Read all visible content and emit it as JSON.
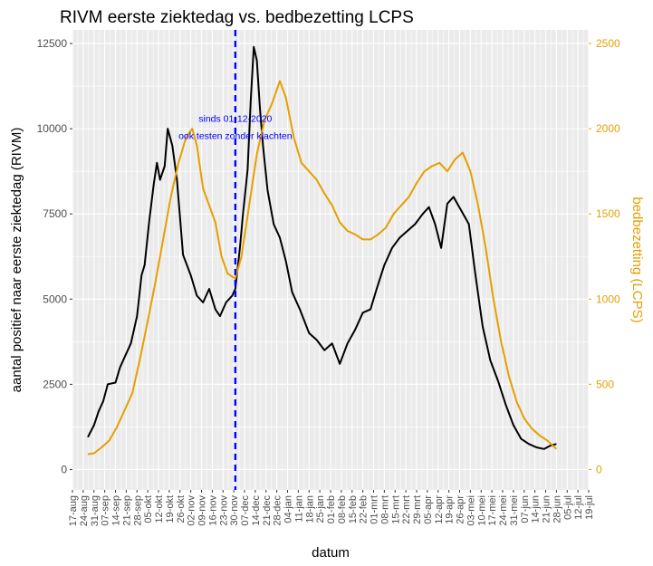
{
  "chart_data": {
    "type": "line",
    "title": "RIVM eerste ziektedag vs. bedbezetting LCPS",
    "xlabel": "datum",
    "ylabel": "aantal positief naar eerste ziektedag (RIVM)",
    "ylabel_right": "bedbezetting (LCPS)",
    "ylim": [
      -600,
      12900
    ],
    "ylim_right": [
      -120,
      2580
    ],
    "yticks": [
      0,
      2500,
      5000,
      7500,
      10000,
      12500
    ],
    "yticks_right": [
      0,
      500,
      1000,
      1500,
      2000,
      2500
    ],
    "x_start": "2020-08-17",
    "x_end": "2021-07-19",
    "xtick_labels": [
      "17-aug",
      "24-aug",
      "31-aug",
      "07-sep",
      "14-sep",
      "21-sep",
      "28-sep",
      "05-okt",
      "12-okt",
      "19-okt",
      "26-okt",
      "02-nov",
      "09-nov",
      "16-nov",
      "23-nov",
      "30-nov",
      "07-dec",
      "14-dec",
      "21-dec",
      "28-dec",
      "04-jan",
      "11-jan",
      "18-jan",
      "25-jan",
      "01-feb",
      "08-feb",
      "15-feb",
      "22-feb",
      "01-mrt",
      "08-mrt",
      "15-mrt",
      "22-mrt",
      "29-mrt",
      "05-apr",
      "12-apr",
      "19-apr",
      "26-apr",
      "03-mei",
      "10-mei",
      "17-mei",
      "24-mei",
      "31-mei",
      "07-jun",
      "14-jun",
      "21-jun",
      "28-jun",
      "05-jul",
      "12-jul",
      "19-jul"
    ],
    "vline": {
      "date": "2020-12-01",
      "color": "#0000ff",
      "style": "dashed"
    },
    "annotation": {
      "line1": "sinds 01-12-2020",
      "line2": "ook testen zonder klachten"
    },
    "colors": {
      "rivm": "#000000",
      "lcps": "#e69f00",
      "panel": "#ebebeb",
      "grid": "#ffffff",
      "annotation": "#0000ff"
    },
    "series": [
      {
        "name": "RIVM eerste ziektedag",
        "color": "#000000",
        "axis": "left",
        "points": [
          [
            "2020-08-27",
            950
          ],
          [
            "2020-08-31",
            1300
          ],
          [
            "2020-09-03",
            1700
          ],
          [
            "2020-09-06",
            2000
          ],
          [
            "2020-09-09",
            2500
          ],
          [
            "2020-09-14",
            2550
          ],
          [
            "2020-09-17",
            3000
          ],
          [
            "2020-09-20",
            3300
          ],
          [
            "2020-09-24",
            3700
          ],
          [
            "2020-09-28",
            4500
          ],
          [
            "2020-10-01",
            5700
          ],
          [
            "2020-10-03",
            6000
          ],
          [
            "2020-10-06",
            7300
          ],
          [
            "2020-10-09",
            8400
          ],
          [
            "2020-10-11",
            9000
          ],
          [
            "2020-10-13",
            8500
          ],
          [
            "2020-10-16",
            8900
          ],
          [
            "2020-10-18",
            10000
          ],
          [
            "2020-10-21",
            9500
          ],
          [
            "2020-10-24",
            8500
          ],
          [
            "2020-10-28",
            6300
          ],
          [
            "2020-11-02",
            5700
          ],
          [
            "2020-11-06",
            5100
          ],
          [
            "2020-11-10",
            4900
          ],
          [
            "2020-11-14",
            5300
          ],
          [
            "2020-11-18",
            4700
          ],
          [
            "2020-11-21",
            4500
          ],
          [
            "2020-11-25",
            4900
          ],
          [
            "2020-11-29",
            5100
          ],
          [
            "2020-12-01",
            5300
          ],
          [
            "2020-12-04",
            6500
          ],
          [
            "2020-12-06",
            7500
          ],
          [
            "2020-12-09",
            8800
          ],
          [
            "2020-12-11",
            10800
          ],
          [
            "2020-12-13",
            12400
          ],
          [
            "2020-12-15",
            12000
          ],
          [
            "2020-12-17",
            10600
          ],
          [
            "2020-12-19",
            9500
          ],
          [
            "2020-12-22",
            8200
          ],
          [
            "2020-12-26",
            7200
          ],
          [
            "2020-12-30",
            6800
          ],
          [
            "2021-01-03",
            6100
          ],
          [
            "2021-01-07",
            5200
          ],
          [
            "2021-01-12",
            4700
          ],
          [
            "2021-01-18",
            4000
          ],
          [
            "2021-01-23",
            3800
          ],
          [
            "2021-01-28",
            3500
          ],
          [
            "2021-02-02",
            3700
          ],
          [
            "2021-02-07",
            3100
          ],
          [
            "2021-02-12",
            3700
          ],
          [
            "2021-02-17",
            4100
          ],
          [
            "2021-02-22",
            4600
          ],
          [
            "2021-02-27",
            4700
          ],
          [
            "2021-03-03",
            5300
          ],
          [
            "2021-03-08",
            6000
          ],
          [
            "2021-03-13",
            6500
          ],
          [
            "2021-03-18",
            6800
          ],
          [
            "2021-03-23",
            7000
          ],
          [
            "2021-03-28",
            7200
          ],
          [
            "2021-04-02",
            7500
          ],
          [
            "2021-04-06",
            7700
          ],
          [
            "2021-04-10",
            7200
          ],
          [
            "2021-04-14",
            6500
          ],
          [
            "2021-04-18",
            7800
          ],
          [
            "2021-04-22",
            8000
          ],
          [
            "2021-04-27",
            7600
          ],
          [
            "2021-05-02",
            7200
          ],
          [
            "2021-05-06",
            5800
          ],
          [
            "2021-05-11",
            4200
          ],
          [
            "2021-05-16",
            3200
          ],
          [
            "2021-05-21",
            2600
          ],
          [
            "2021-05-26",
            1900
          ],
          [
            "2021-05-31",
            1300
          ],
          [
            "2021-06-05",
            900
          ],
          [
            "2021-06-10",
            750
          ],
          [
            "2021-06-15",
            650
          ],
          [
            "2021-06-20",
            600
          ],
          [
            "2021-06-24",
            700
          ],
          [
            "2021-06-28",
            750
          ]
        ]
      },
      {
        "name": "LCPS bedbezetting",
        "color": "#e69f00",
        "axis": "right",
        "points": [
          [
            "2020-08-27",
            90
          ],
          [
            "2020-08-31",
            95
          ],
          [
            "2020-09-05",
            130
          ],
          [
            "2020-09-10",
            170
          ],
          [
            "2020-09-15",
            250
          ],
          [
            "2020-09-20",
            350
          ],
          [
            "2020-09-25",
            450
          ],
          [
            "2020-09-30",
            650
          ],
          [
            "2020-10-05",
            870
          ],
          [
            "2020-10-10",
            1100
          ],
          [
            "2020-10-15",
            1350
          ],
          [
            "2020-10-20",
            1600
          ],
          [
            "2020-10-25",
            1800
          ],
          [
            "2020-10-30",
            1950
          ],
          [
            "2020-11-03",
            2000
          ],
          [
            "2020-11-06",
            1900
          ],
          [
            "2020-11-10",
            1650
          ],
          [
            "2020-11-14",
            1550
          ],
          [
            "2020-11-18",
            1450
          ],
          [
            "2020-11-22",
            1250
          ],
          [
            "2020-11-26",
            1150
          ],
          [
            "2020-12-01",
            1120
          ],
          [
            "2020-12-05",
            1250
          ],
          [
            "2020-12-10",
            1550
          ],
          [
            "2020-12-15",
            1850
          ],
          [
            "2020-12-20",
            2050
          ],
          [
            "2020-12-25",
            2150
          ],
          [
            "2020-12-30",
            2280
          ],
          [
            "2021-01-03",
            2180
          ],
          [
            "2021-01-08",
            1950
          ],
          [
            "2021-01-13",
            1800
          ],
          [
            "2021-01-18",
            1750
          ],
          [
            "2021-01-23",
            1700
          ],
          [
            "2021-01-28",
            1620
          ],
          [
            "2021-02-02",
            1550
          ],
          [
            "2021-02-07",
            1450
          ],
          [
            "2021-02-12",
            1400
          ],
          [
            "2021-02-17",
            1380
          ],
          [
            "2021-02-22",
            1350
          ],
          [
            "2021-02-27",
            1350
          ],
          [
            "2021-03-04",
            1380
          ],
          [
            "2021-03-09",
            1420
          ],
          [
            "2021-03-14",
            1500
          ],
          [
            "2021-03-19",
            1550
          ],
          [
            "2021-03-24",
            1600
          ],
          [
            "2021-03-29",
            1680
          ],
          [
            "2021-04-03",
            1750
          ],
          [
            "2021-04-08",
            1780
          ],
          [
            "2021-04-13",
            1800
          ],
          [
            "2021-04-18",
            1750
          ],
          [
            "2021-04-23",
            1820
          ],
          [
            "2021-04-28",
            1860
          ],
          [
            "2021-05-03",
            1750
          ],
          [
            "2021-05-08",
            1550
          ],
          [
            "2021-05-13",
            1300
          ],
          [
            "2021-05-18",
            1000
          ],
          [
            "2021-05-23",
            750
          ],
          [
            "2021-05-28",
            550
          ],
          [
            "2021-06-02",
            400
          ],
          [
            "2021-06-07",
            300
          ],
          [
            "2021-06-12",
            240
          ],
          [
            "2021-06-17",
            200
          ],
          [
            "2021-06-22",
            170
          ],
          [
            "2021-06-28",
            120
          ]
        ]
      }
    ]
  }
}
